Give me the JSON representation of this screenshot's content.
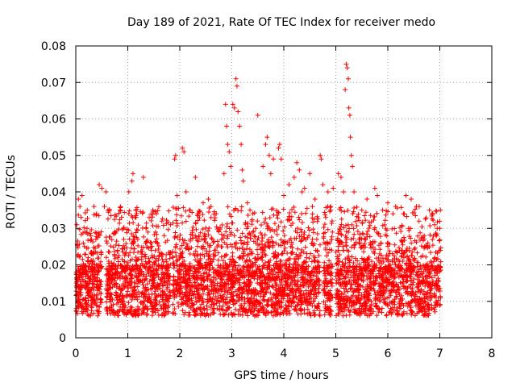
{
  "chart_data": {
    "type": "scatter",
    "title": "Day 189 of 2021, Rate Of TEC Index for receiver medo",
    "xlabel": "GPS time / hours",
    "ylabel": "ROTI / TECUs",
    "xlim": [
      0,
      8
    ],
    "ylim": [
      0,
      0.08
    ],
    "x_ticks": [
      "0",
      "1",
      "2",
      "3",
      "4",
      "5",
      "6",
      "7",
      "8"
    ],
    "y_ticks": [
      "0",
      "0.01",
      "0.02",
      "0.03",
      "0.04",
      "0.05",
      "0.06",
      "0.07",
      "0.08"
    ],
    "grid": true,
    "marker": "+",
    "color": "#ff0000",
    "series": [
      {
        "points": [
          [
            0.02,
            0.031
          ],
          [
            0.05,
            0.038
          ],
          [
            0.08,
            0.036
          ],
          [
            0.1,
            0.033
          ],
          [
            0.12,
            0.039
          ],
          [
            0.18,
            0.029
          ],
          [
            0.22,
            0.035
          ],
          [
            0.3,
            0.027
          ],
          [
            0.35,
            0.036
          ],
          [
            0.4,
            0.034
          ],
          [
            0.45,
            0.042
          ],
          [
            0.5,
            0.041
          ],
          [
            0.55,
            0.036
          ],
          [
            0.58,
            0.04
          ],
          [
            0.62,
            0.035
          ],
          [
            0.75,
            0.029
          ],
          [
            0.85,
            0.035
          ],
          [
            0.88,
            0.033
          ],
          [
            0.92,
            0.03
          ],
          [
            1.02,
            0.04
          ],
          [
            1.08,
            0.043
          ],
          [
            1.1,
            0.045
          ],
          [
            1.15,
            0.035
          ],
          [
            1.3,
            0.044
          ],
          [
            1.35,
            0.03
          ],
          [
            1.45,
            0.026
          ],
          [
            1.55,
            0.034
          ],
          [
            1.7,
            0.028
          ],
          [
            1.82,
            0.031
          ],
          [
            1.9,
            0.049
          ],
          [
            1.92,
            0.05
          ],
          [
            1.95,
            0.039
          ],
          [
            2.05,
            0.052
          ],
          [
            2.08,
            0.051
          ],
          [
            2.12,
            0.04
          ],
          [
            2.2,
            0.035
          ],
          [
            2.3,
            0.044
          ],
          [
            2.35,
            0.034
          ],
          [
            2.45,
            0.037
          ],
          [
            2.55,
            0.038
          ],
          [
            2.6,
            0.036
          ],
          [
            2.7,
            0.034
          ],
          [
            2.85,
            0.045
          ],
          [
            2.88,
            0.064
          ],
          [
            2.9,
            0.058
          ],
          [
            2.92,
            0.053
          ],
          [
            2.95,
            0.051
          ],
          [
            2.98,
            0.047
          ],
          [
            3.02,
            0.064
          ],
          [
            3.05,
            0.063
          ],
          [
            3.08,
            0.071
          ],
          [
            3.1,
            0.069
          ],
          [
            3.12,
            0.062
          ],
          [
            3.15,
            0.058
          ],
          [
            3.18,
            0.053
          ],
          [
            3.2,
            0.046
          ],
          [
            3.22,
            0.043
          ],
          [
            3.3,
            0.037
          ],
          [
            3.35,
            0.035
          ],
          [
            3.5,
            0.061
          ],
          [
            3.6,
            0.047
          ],
          [
            3.65,
            0.053
          ],
          [
            3.68,
            0.055
          ],
          [
            3.72,
            0.05
          ],
          [
            3.75,
            0.045
          ],
          [
            3.8,
            0.049
          ],
          [
            3.9,
            0.052
          ],
          [
            3.92,
            0.053
          ],
          [
            3.95,
            0.049
          ],
          [
            4.0,
            0.039
          ],
          [
            4.1,
            0.042
          ],
          [
            4.2,
            0.044
          ],
          [
            4.25,
            0.048
          ],
          [
            4.3,
            0.046
          ],
          [
            4.35,
            0.04
          ],
          [
            4.4,
            0.041
          ],
          [
            4.5,
            0.045
          ],
          [
            4.55,
            0.036
          ],
          [
            4.6,
            0.038
          ],
          [
            4.7,
            0.05
          ],
          [
            4.72,
            0.049
          ],
          [
            4.75,
            0.042
          ],
          [
            4.85,
            0.04
          ],
          [
            4.9,
            0.035
          ],
          [
            4.95,
            0.041
          ],
          [
            5.05,
            0.045
          ],
          [
            5.1,
            0.044
          ],
          [
            5.15,
            0.04
          ],
          [
            5.18,
            0.068
          ],
          [
            5.2,
            0.075
          ],
          [
            5.22,
            0.074
          ],
          [
            5.24,
            0.071
          ],
          [
            5.25,
            0.063
          ],
          [
            5.27,
            0.061
          ],
          [
            5.28,
            0.055
          ],
          [
            5.3,
            0.05
          ],
          [
            5.32,
            0.047
          ],
          [
            5.35,
            0.04
          ],
          [
            5.5,
            0.035
          ],
          [
            5.6,
            0.038
          ],
          [
            5.75,
            0.041
          ],
          [
            5.8,
            0.039
          ],
          [
            5.9,
            0.035
          ],
          [
            6.0,
            0.037
          ],
          [
            6.1,
            0.034
          ],
          [
            6.15,
            0.036
          ],
          [
            6.3,
            0.034
          ],
          [
            6.35,
            0.039
          ],
          [
            6.4,
            0.03
          ],
          [
            6.45,
            0.038
          ],
          [
            6.55,
            0.036
          ],
          [
            6.6,
            0.032
          ],
          [
            6.7,
            0.028
          ],
          [
            6.8,
            0.035
          ],
          [
            6.85,
            0.034
          ],
          [
            6.9,
            0.031
          ],
          [
            6.95,
            0.03
          ],
          [
            7.0,
            0.03
          ]
        ]
      }
    ]
  }
}
